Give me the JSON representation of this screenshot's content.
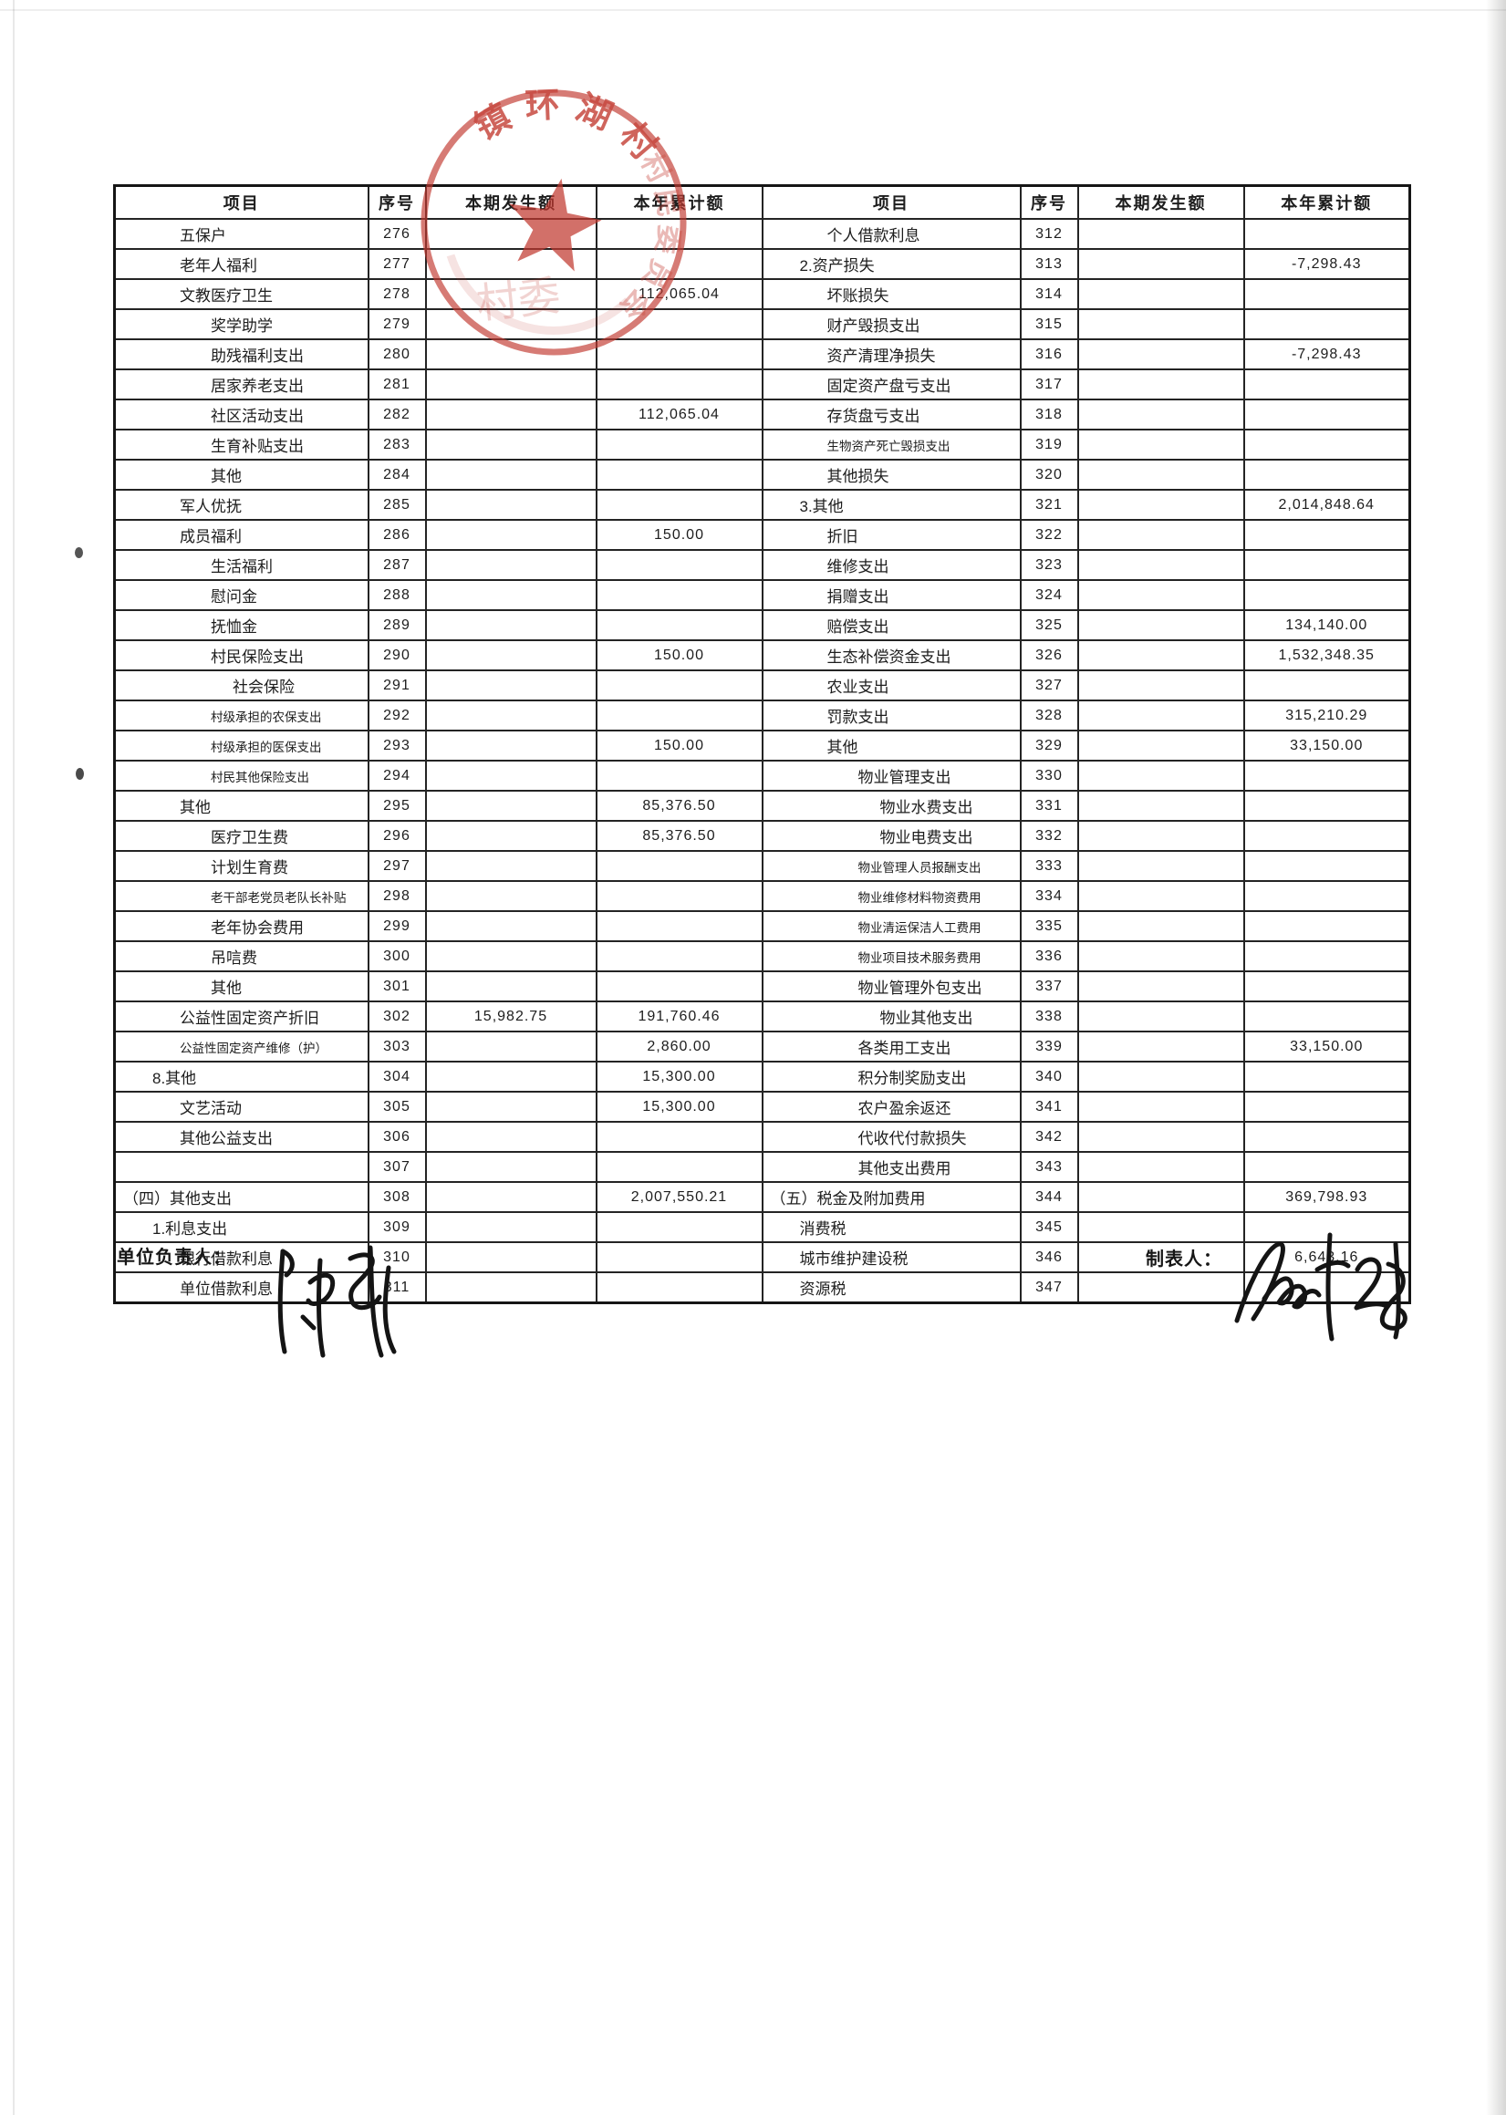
{
  "table": {
    "headers": [
      "项目",
      "序号",
      "本期发生额",
      "本年累计额"
    ],
    "row_format": [
      "序号",
      "项目",
      "indent_level",
      "small_font",
      "本期发生额",
      "本年累计额"
    ],
    "left_rows": [
      [
        "276",
        "五保户",
        2,
        0,
        "",
        ""
      ],
      [
        "277",
        "老年人福利",
        2,
        0,
        "",
        ""
      ],
      [
        "278",
        "文教医疗卫生",
        2,
        0,
        "",
        "112,065.04"
      ],
      [
        "279",
        "奖学助学",
        3,
        0,
        "",
        ""
      ],
      [
        "280",
        "助残福利支出",
        3,
        0,
        "",
        ""
      ],
      [
        "281",
        "居家养老支出",
        3,
        0,
        "",
        ""
      ],
      [
        "282",
        "社区活动支出",
        3,
        0,
        "",
        "112,065.04"
      ],
      [
        "283",
        "生育补贴支出",
        3,
        0,
        "",
        ""
      ],
      [
        "284",
        "其他",
        3,
        0,
        "",
        ""
      ],
      [
        "285",
        "军人优抚",
        2,
        0,
        "",
        ""
      ],
      [
        "286",
        "成员福利",
        2,
        0,
        "",
        "150.00"
      ],
      [
        "287",
        "生活福利",
        3,
        0,
        "",
        ""
      ],
      [
        "288",
        "慰问金",
        3,
        0,
        "",
        ""
      ],
      [
        "289",
        "抚恤金",
        3,
        0,
        "",
        ""
      ],
      [
        "290",
        "村民保险支出",
        3,
        0,
        "",
        "150.00"
      ],
      [
        "291",
        "社会保险",
        4,
        0,
        "",
        ""
      ],
      [
        "292",
        "村级承担的农保支出",
        3,
        1,
        "",
        ""
      ],
      [
        "293",
        "村级承担的医保支出",
        3,
        1,
        "",
        "150.00"
      ],
      [
        "294",
        "村民其他保险支出",
        3,
        1,
        "",
        ""
      ],
      [
        "295",
        "其他",
        2,
        0,
        "",
        "85,376.50"
      ],
      [
        "296",
        "医疗卫生费",
        3,
        0,
        "",
        "85,376.50"
      ],
      [
        "297",
        "计划生育费",
        3,
        0,
        "",
        ""
      ],
      [
        "298",
        "老干部老党员老队长补贴",
        3,
        1,
        "",
        ""
      ],
      [
        "299",
        "老年协会费用",
        3,
        0,
        "",
        ""
      ],
      [
        "300",
        "吊唁费",
        3,
        0,
        "",
        ""
      ],
      [
        "301",
        "其他",
        3,
        0,
        "",
        ""
      ],
      [
        "302",
        "公益性固定资产折旧",
        2,
        0,
        "15,982.75",
        "191,760.46"
      ],
      [
        "303",
        "公益性固定资产维修（护）",
        2,
        1,
        "",
        "2,860.00"
      ],
      [
        "304",
        "8.其他",
        1,
        0,
        "",
        "15,300.00"
      ],
      [
        "305",
        "文艺活动",
        2,
        0,
        "",
        "15,300.00"
      ],
      [
        "306",
        "其他公益支出",
        2,
        0,
        "",
        ""
      ],
      [
        "307",
        "",
        0,
        0,
        "",
        ""
      ],
      [
        "308",
        "（四）其他支出",
        0,
        0,
        "",
        "2,007,550.21"
      ],
      [
        "309",
        "1.利息支出",
        1,
        0,
        "",
        ""
      ],
      [
        "310",
        "银行借款利息",
        2,
        0,
        "",
        ""
      ],
      [
        "311",
        "单位借款利息",
        2,
        0,
        "",
        ""
      ]
    ],
    "right_rows": [
      [
        "312",
        "个人借款利息",
        2,
        0,
        "",
        ""
      ],
      [
        "313",
        "2.资产损失",
        1,
        0,
        "",
        "-7,298.43"
      ],
      [
        "314",
        "坏账损失",
        2,
        0,
        "",
        ""
      ],
      [
        "315",
        "财产毁损支出",
        2,
        0,
        "",
        ""
      ],
      [
        "316",
        "资产清理净损失",
        2,
        0,
        "",
        "-7,298.43"
      ],
      [
        "317",
        "固定资产盘亏支出",
        2,
        0,
        "",
        ""
      ],
      [
        "318",
        "存货盘亏支出",
        2,
        0,
        "",
        ""
      ],
      [
        "319",
        "生物资产死亡毁损支出",
        2,
        1,
        "",
        ""
      ],
      [
        "320",
        "其他损失",
        2,
        0,
        "",
        ""
      ],
      [
        "321",
        "3.其他",
        1,
        0,
        "",
        "2,014,848.64"
      ],
      [
        "322",
        "折旧",
        2,
        0,
        "",
        ""
      ],
      [
        "323",
        "维修支出",
        2,
        0,
        "",
        ""
      ],
      [
        "324",
        "捐赠支出",
        2,
        0,
        "",
        ""
      ],
      [
        "325",
        "赔偿支出",
        2,
        0,
        "",
        "134,140.00"
      ],
      [
        "326",
        "生态补偿资金支出",
        2,
        0,
        "",
        "1,532,348.35"
      ],
      [
        "327",
        "农业支出",
        2,
        0,
        "",
        ""
      ],
      [
        "328",
        "罚款支出",
        2,
        0,
        "",
        "315,210.29"
      ],
      [
        "329",
        "其他",
        2,
        0,
        "",
        "33,150.00"
      ],
      [
        "330",
        "物业管理支出",
        3,
        0,
        "",
        ""
      ],
      [
        "331",
        "物业水费支出",
        4,
        0,
        "",
        ""
      ],
      [
        "332",
        "物业电费支出",
        4,
        0,
        "",
        ""
      ],
      [
        "333",
        "物业管理人员报酬支出",
        3,
        1,
        "",
        ""
      ],
      [
        "334",
        "物业维修材料物资费用",
        3,
        1,
        "",
        ""
      ],
      [
        "335",
        "物业清运保洁人工费用",
        3,
        1,
        "",
        ""
      ],
      [
        "336",
        "物业项目技术服务费用",
        3,
        1,
        "",
        ""
      ],
      [
        "337",
        "物业管理外包支出",
        3,
        0,
        "",
        ""
      ],
      [
        "338",
        "物业其他支出",
        4,
        0,
        "",
        ""
      ],
      [
        "339",
        "各类用工支出",
        3,
        0,
        "",
        "33,150.00"
      ],
      [
        "340",
        "积分制奖励支出",
        3,
        0,
        "",
        ""
      ],
      [
        "341",
        "农户盈余返还",
        3,
        0,
        "",
        ""
      ],
      [
        "342",
        "代收代付款损失",
        3,
        0,
        "",
        ""
      ],
      [
        "343",
        "其他支出费用",
        3,
        0,
        "",
        ""
      ],
      [
        "344",
        "（五）税金及附加费用",
        0,
        0,
        "",
        "369,798.93"
      ],
      [
        "345",
        "消费税",
        1,
        0,
        "",
        ""
      ],
      [
        "346",
        "城市维护建设税",
        1,
        0,
        "",
        "6,643.16"
      ],
      [
        "347",
        "资源税",
        1,
        0,
        "",
        ""
      ]
    ]
  },
  "footer": {
    "left_label": "单位负责人：",
    "right_label": "制表人："
  },
  "stamp": {
    "shape": "round-seal-with-star",
    "arc_text_primary": "镇环湖村",
    "arc_text_secondary": "村民委员会",
    "inner_faint_chars": "村委",
    "color": "#c2392f"
  },
  "colors": {
    "paper": "#ffffff",
    "ink": "#1d1d1d",
    "grid": "#242424",
    "stamp_red": "#c2392f"
  }
}
